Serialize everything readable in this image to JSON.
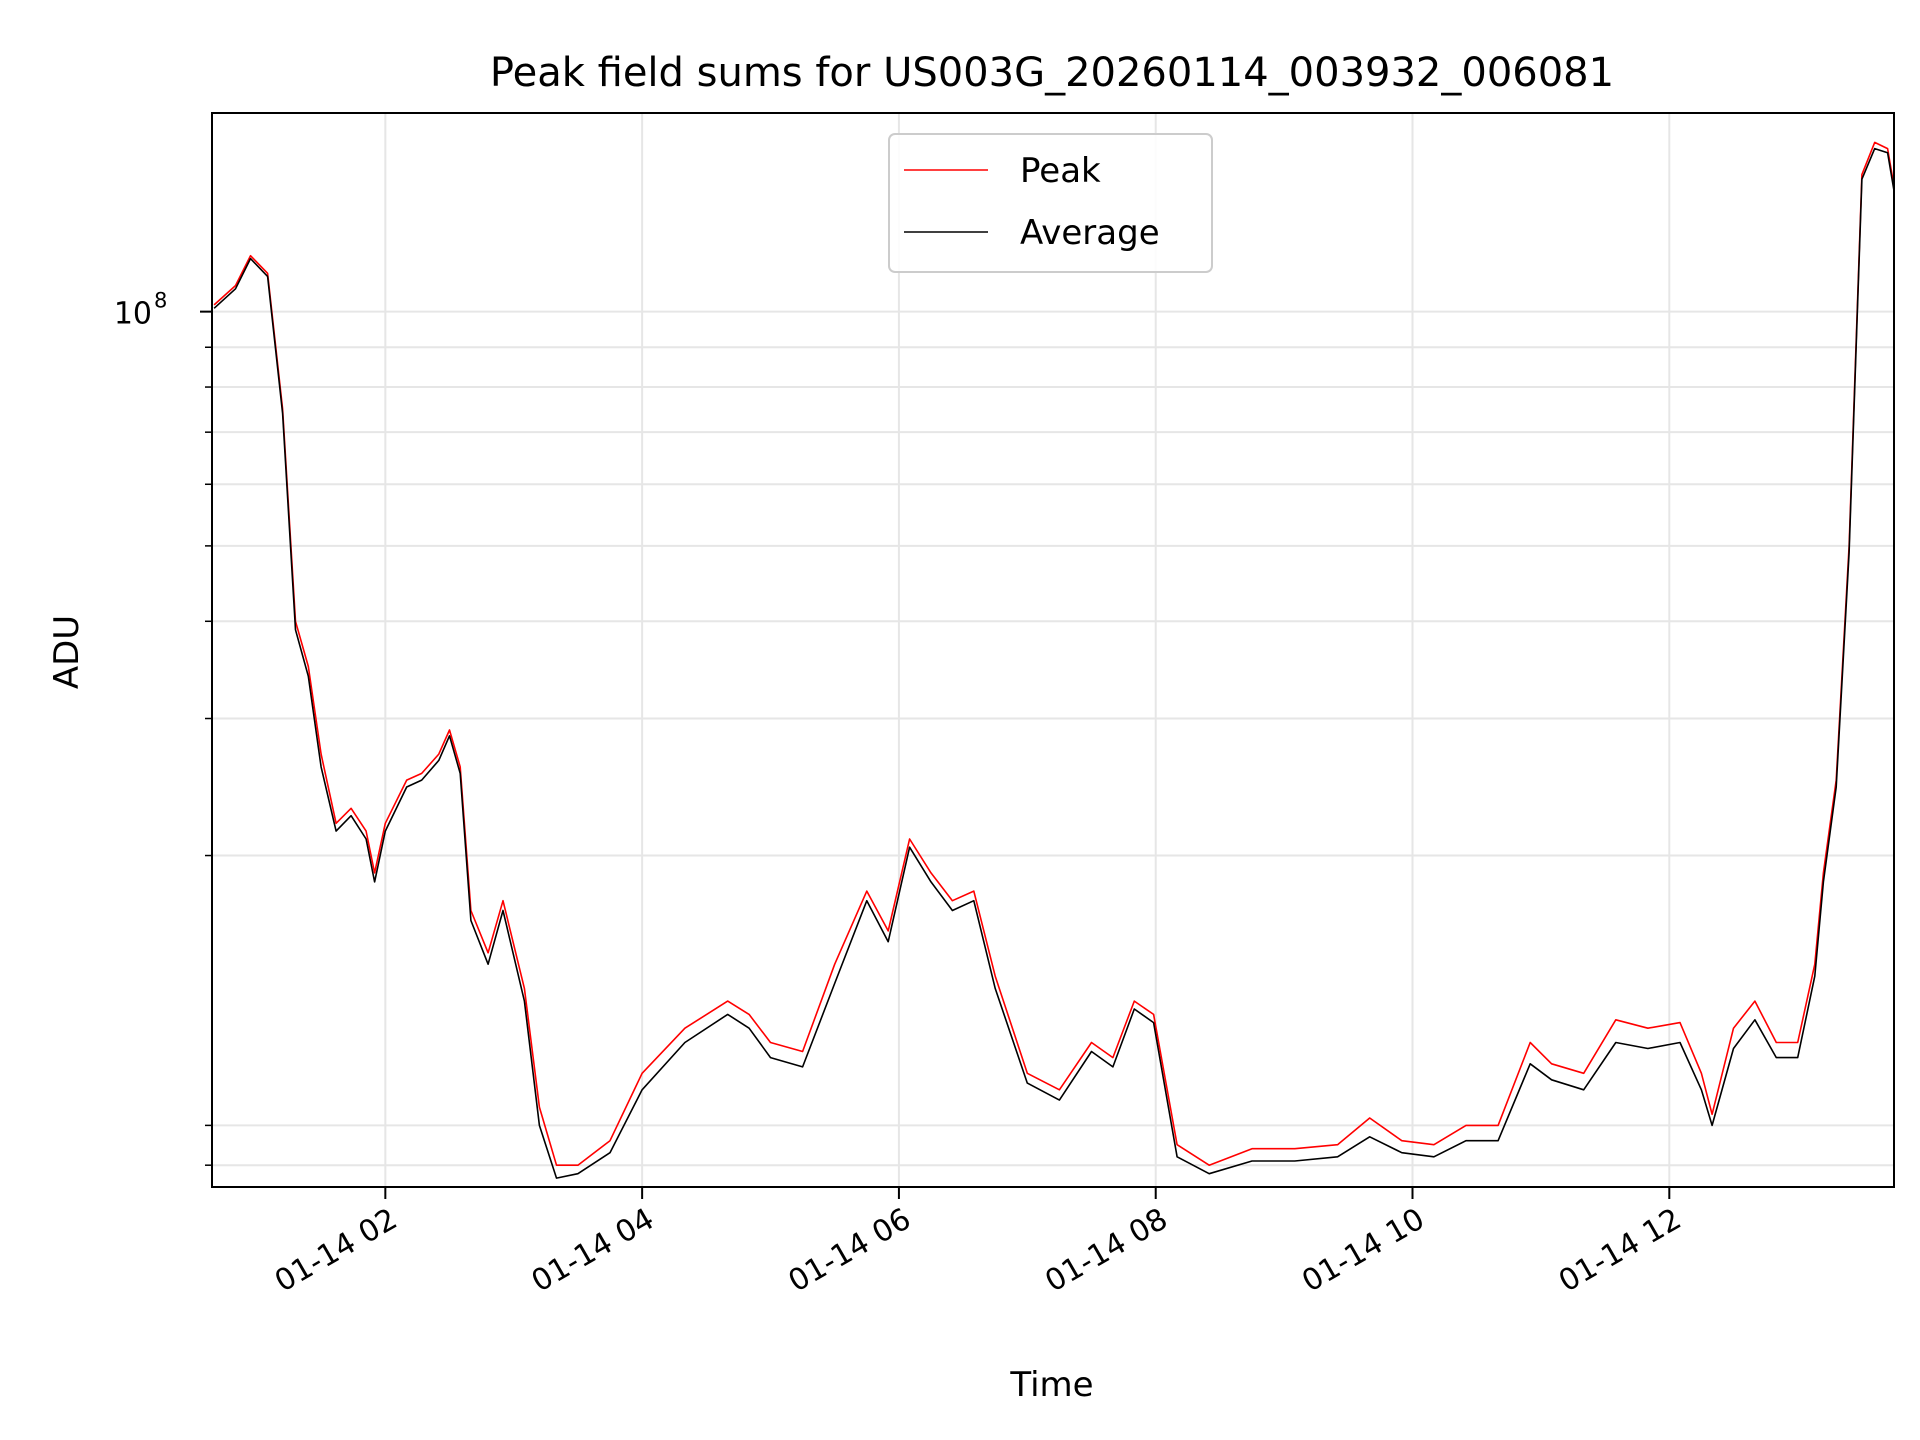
{
  "chart_data": {
    "type": "line",
    "title": "Peak field sums for US003G_20260114_003932_006081",
    "xlabel": "Time",
    "ylabel": "ADU",
    "y_scale": "log",
    "grid": true,
    "legend_position": "top-center",
    "x_range": [
      "2026-01-14 00:39",
      "2026-01-14 13:45"
    ],
    "y_range": [
      7500000.0,
      180000000.0
    ],
    "x_ticks": [
      "01-14 02",
      "01-14 04",
      "01-14 06",
      "01-14 08",
      "01-14 10",
      "01-14 12"
    ],
    "y_major_ticks": [
      {
        "value": 100000000,
        "base": "10",
        "exponent": "8"
      }
    ],
    "y_minor_ticks": [
      8000000.0,
      9000000.0,
      20000000.0,
      30000000.0,
      40000000.0,
      50000000.0,
      60000000.0,
      70000000.0,
      80000000.0,
      90000000.0
    ],
    "series": [
      {
        "name": "Peak",
        "color": "#ff0000",
        "x": [
          "2026-01-14 00:40",
          "2026-01-14 00:50",
          "2026-01-14 00:57",
          "2026-01-14 01:05",
          "2026-01-14 01:12",
          "2026-01-14 01:18",
          "2026-01-14 01:24",
          "2026-01-14 01:30",
          "2026-01-14 01:37",
          "2026-01-14 01:44",
          "2026-01-14 01:51",
          "2026-01-14 01:55",
          "2026-01-14 02:00",
          "2026-01-14 02:10",
          "2026-01-14 02:17",
          "2026-01-14 02:25",
          "2026-01-14 02:30",
          "2026-01-14 02:35",
          "2026-01-14 02:40",
          "2026-01-14 02:48",
          "2026-01-14 02:55",
          "2026-01-14 03:05",
          "2026-01-14 03:12",
          "2026-01-14 03:20",
          "2026-01-14 03:30",
          "2026-01-14 03:45",
          "2026-01-14 04:00",
          "2026-01-14 04:20",
          "2026-01-14 04:40",
          "2026-01-14 04:50",
          "2026-01-14 05:00",
          "2026-01-14 05:15",
          "2026-01-14 05:30",
          "2026-01-14 05:45",
          "2026-01-14 05:55",
          "2026-01-14 06:05",
          "2026-01-14 06:15",
          "2026-01-14 06:25",
          "2026-01-14 06:35",
          "2026-01-14 06:45",
          "2026-01-14 07:00",
          "2026-01-14 07:15",
          "2026-01-14 07:30",
          "2026-01-14 07:40",
          "2026-01-14 07:50",
          "2026-01-14 07:59",
          "2026-01-14 08:10",
          "2026-01-14 08:25",
          "2026-01-14 08:45",
          "2026-01-14 09:05",
          "2026-01-14 09:25",
          "2026-01-14 09:40",
          "2026-01-14 09:55",
          "2026-01-14 10:10",
          "2026-01-14 10:25",
          "2026-01-14 10:40",
          "2026-01-14 10:55",
          "2026-01-14 11:05",
          "2026-01-14 11:20",
          "2026-01-14 11:35",
          "2026-01-14 11:50",
          "2026-01-14 12:05",
          "2026-01-14 12:15",
          "2026-01-14 12:20",
          "2026-01-14 12:30",
          "2026-01-14 12:40",
          "2026-01-14 12:50",
          "2026-01-14 13:00",
          "2026-01-14 13:08",
          "2026-01-14 13:12",
          "2026-01-14 13:18",
          "2026-01-14 13:24",
          "2026-01-14 13:30",
          "2026-01-14 13:36",
          "2026-01-14 13:42",
          "2026-01-14 13:45"
        ],
        "y": [
          102000000,
          108000000,
          118000000,
          112000000,
          75000000,
          40000000,
          35000000,
          27000000,
          22000000,
          23000000,
          21500000,
          19000000,
          22000000,
          25000000,
          25500000,
          27000000,
          29000000,
          26000000,
          17000000,
          15000000,
          17500000,
          13500000,
          9500000,
          8000000,
          8000000,
          8600000,
          10500000,
          12000000,
          13000000,
          12500000,
          11500000,
          11200000,
          14500000,
          18000000,
          16000000,
          21000000,
          19000000,
          17500000,
          18000000,
          14000000,
          10500000,
          10000000,
          11500000,
          11000000,
          13000000,
          12500000,
          8500000,
          8000000,
          8400000,
          8400000,
          8500000,
          9200000,
          8600000,
          8500000,
          9000000,
          9000000,
          11500000,
          10800000,
          10500000,
          12300000,
          12000000,
          12200000,
          10500000,
          9300000,
          12000000,
          13000000,
          11500000,
          11500000,
          14500000,
          19000000,
          25000000,
          50000000,
          150000000,
          165000000,
          162000000,
          145000000
        ]
      },
      {
        "name": "Average",
        "color": "#000000",
        "x": [
          "2026-01-14 00:40",
          "2026-01-14 00:50",
          "2026-01-14 00:57",
          "2026-01-14 01:05",
          "2026-01-14 01:12",
          "2026-01-14 01:18",
          "2026-01-14 01:24",
          "2026-01-14 01:30",
          "2026-01-14 01:37",
          "2026-01-14 01:44",
          "2026-01-14 01:51",
          "2026-01-14 01:55",
          "2026-01-14 02:00",
          "2026-01-14 02:10",
          "2026-01-14 02:17",
          "2026-01-14 02:25",
          "2026-01-14 02:30",
          "2026-01-14 02:35",
          "2026-01-14 02:40",
          "2026-01-14 02:48",
          "2026-01-14 02:55",
          "2026-01-14 03:05",
          "2026-01-14 03:12",
          "2026-01-14 03:20",
          "2026-01-14 03:30",
          "2026-01-14 03:45",
          "2026-01-14 04:00",
          "2026-01-14 04:20",
          "2026-01-14 04:40",
          "2026-01-14 04:50",
          "2026-01-14 05:00",
          "2026-01-14 05:15",
          "2026-01-14 05:30",
          "2026-01-14 05:45",
          "2026-01-14 05:55",
          "2026-01-14 06:05",
          "2026-01-14 06:15",
          "2026-01-14 06:25",
          "2026-01-14 06:35",
          "2026-01-14 06:45",
          "2026-01-14 07:00",
          "2026-01-14 07:15",
          "2026-01-14 07:30",
          "2026-01-14 07:40",
          "2026-01-14 07:50",
          "2026-01-14 07:59",
          "2026-01-14 08:10",
          "2026-01-14 08:25",
          "2026-01-14 08:45",
          "2026-01-14 09:05",
          "2026-01-14 09:25",
          "2026-01-14 09:40",
          "2026-01-14 09:55",
          "2026-01-14 10:10",
          "2026-01-14 10:25",
          "2026-01-14 10:40",
          "2026-01-14 10:55",
          "2026-01-14 11:05",
          "2026-01-14 11:20",
          "2026-01-14 11:35",
          "2026-01-14 11:50",
          "2026-01-14 12:05",
          "2026-01-14 12:15",
          "2026-01-14 12:20",
          "2026-01-14 12:30",
          "2026-01-14 12:40",
          "2026-01-14 12:50",
          "2026-01-14 13:00",
          "2026-01-14 13:08",
          "2026-01-14 13:12",
          "2026-01-14 13:18",
          "2026-01-14 13:24",
          "2026-01-14 13:30",
          "2026-01-14 13:36",
          "2026-01-14 13:42",
          "2026-01-14 13:45"
        ],
        "y": [
          101000000,
          107000000,
          117000000,
          111000000,
          74000000,
          39000000,
          34000000,
          26000000,
          21500000,
          22500000,
          21000000,
          18500000,
          21500000,
          24500000,
          25000000,
          26500000,
          28500000,
          25500000,
          16500000,
          14500000,
          17000000,
          13000000,
          9000000,
          7700000,
          7800000,
          8300000,
          10000000,
          11500000,
          12500000,
          12000000,
          11000000,
          10700000,
          13700000,
          17500000,
          15500000,
          20500000,
          18500000,
          17000000,
          17500000,
          13500000,
          10200000,
          9700000,
          11200000,
          10700000,
          12700000,
          12200000,
          8200000,
          7800000,
          8100000,
          8100000,
          8200000,
          8700000,
          8300000,
          8200000,
          8600000,
          8600000,
          10800000,
          10300000,
          10000000,
          11500000,
          11300000,
          11500000,
          10000000,
          9000000,
          11300000,
          12300000,
          11000000,
          11000000,
          14000000,
          18500000,
          24500000,
          49000000,
          148000000,
          162000000,
          160000000,
          143000000
        ]
      }
    ]
  }
}
